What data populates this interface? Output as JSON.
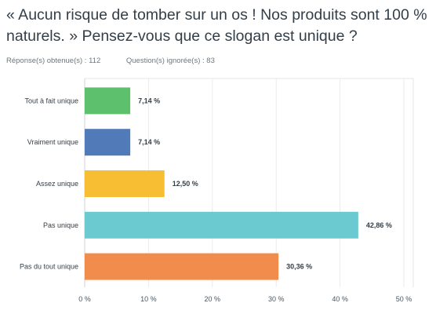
{
  "question": {
    "title": "« Aucun risque de tomber sur un os ! Nos produits sont 100 % naturels. » Pensez-vous que ce slogan est unique ?",
    "answered_label": "Réponse(s) obtenue(s) : 112",
    "skipped_label": "Question(s) ignorée(s) : 83"
  },
  "chart_data": {
    "type": "bar",
    "orientation": "horizontal",
    "categories": [
      "Tout à fait unique",
      "Vraiment unique",
      "Assez unique",
      "Pas unique",
      "Pas du tout unique"
    ],
    "values": [
      7.14,
      7.14,
      12.5,
      42.86,
      30.36
    ],
    "value_labels": [
      "7,14 %",
      "7,14 %",
      "12,50 %",
      "42,86 %",
      "30,36 %"
    ],
    "colors": [
      "#5cc06d",
      "#507ab8",
      "#f7bd33",
      "#6bcad0",
      "#f28c4c"
    ],
    "xlim": [
      0,
      50
    ],
    "xticks": [
      0,
      10,
      20,
      30,
      40,
      50
    ],
    "xtick_labels": [
      "0 %",
      "10 %",
      "20 %",
      "30 %",
      "40 %",
      "50 %"
    ],
    "grid": true
  }
}
